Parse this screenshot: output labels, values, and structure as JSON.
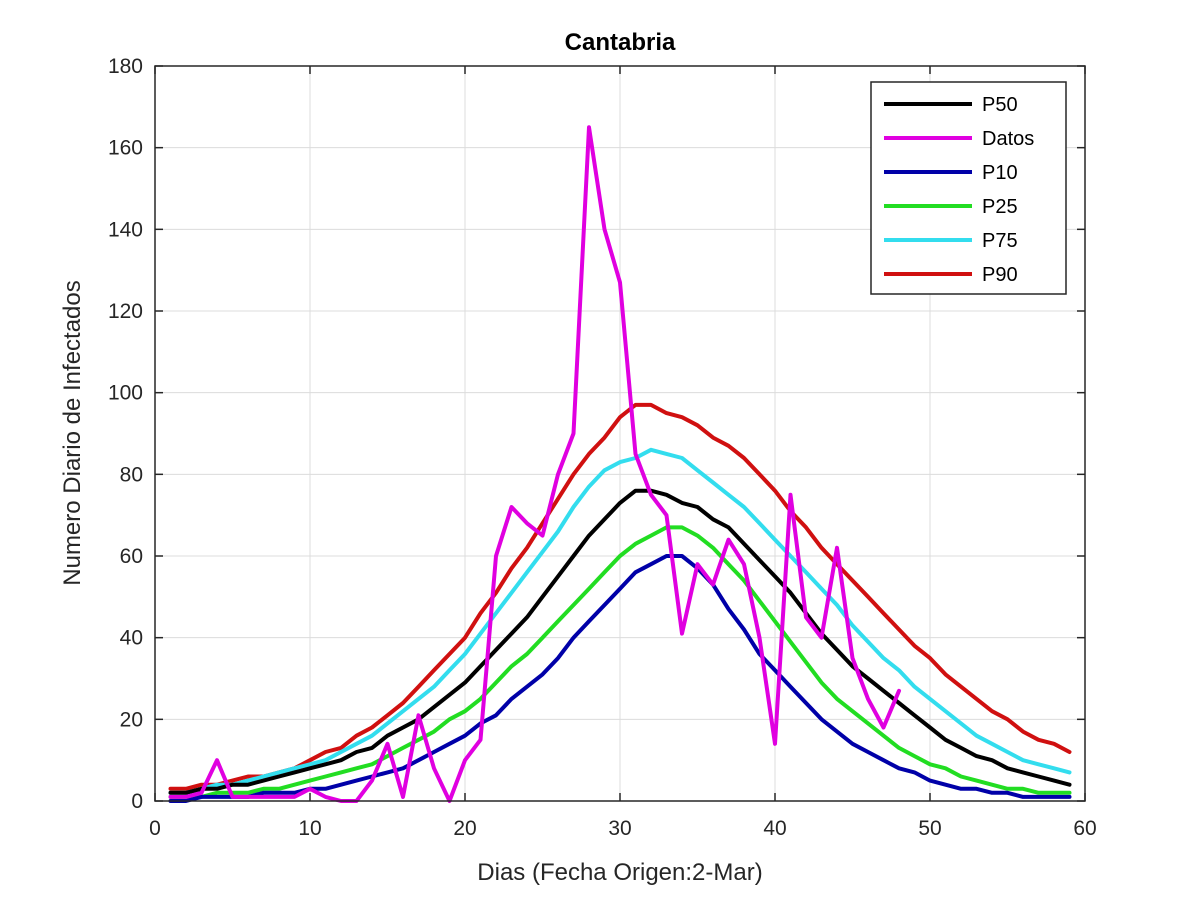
{
  "chart_data": {
    "type": "line",
    "title": "Cantabria",
    "xlabel": "Dias (Fecha Origen:2-Mar)",
    "ylabel": "Numero Diario de Infectados",
    "xlim": [
      0,
      60
    ],
    "ylim": [
      0,
      180
    ],
    "xticks": [
      "0",
      "10",
      "20",
      "30",
      "40",
      "50",
      "60"
    ],
    "yticks": [
      "0",
      "20",
      "40",
      "60",
      "80",
      "100",
      "120",
      "140",
      "160",
      "180"
    ],
    "grid": true,
    "legend_position": "top-right",
    "series": [
      {
        "name": "P50",
        "color": "#000000",
        "x": [
          1,
          2,
          3,
          4,
          5,
          6,
          7,
          8,
          9,
          10,
          11,
          12,
          13,
          14,
          15,
          16,
          17,
          18,
          19,
          20,
          21,
          22,
          23,
          24,
          25,
          26,
          27,
          28,
          29,
          30,
          31,
          32,
          33,
          34,
          35,
          36,
          37,
          38,
          39,
          40,
          41,
          42,
          43,
          44,
          45,
          46,
          47,
          48,
          49,
          50,
          51,
          52,
          53,
          54,
          55,
          56,
          57,
          58,
          59
        ],
        "y": [
          2,
          2,
          3,
          3,
          4,
          4,
          5,
          6,
          7,
          8,
          9,
          10,
          12,
          13,
          16,
          18,
          20,
          23,
          26,
          29,
          33,
          37,
          41,
          45,
          50,
          55,
          60,
          65,
          69,
          73,
          76,
          76,
          75,
          73,
          72,
          69,
          67,
          63,
          59,
          55,
          51,
          46,
          41,
          37,
          33,
          30,
          27,
          24,
          21,
          18,
          15,
          13,
          11,
          10,
          8,
          7,
          6,
          5,
          4
        ]
      },
      {
        "name": "Datos",
        "color": "#e000e0",
        "x": [
          1,
          2,
          3,
          4,
          5,
          6,
          7,
          8,
          9,
          10,
          11,
          12,
          13,
          14,
          15,
          16,
          17,
          18,
          19,
          20,
          21,
          22,
          23,
          24,
          25,
          26,
          27,
          28,
          29,
          30,
          31,
          32,
          33,
          34,
          35,
          36,
          37,
          38,
          39,
          40,
          41,
          42,
          43,
          44,
          45,
          46,
          47,
          48
        ],
        "y": [
          1,
          1,
          2,
          10,
          1,
          1,
          1,
          1,
          1,
          3,
          1,
          0,
          0,
          5,
          14,
          1,
          21,
          8,
          0,
          10,
          15,
          60,
          72,
          68,
          65,
          80,
          90,
          165,
          140,
          127,
          85,
          75,
          70,
          41,
          58,
          53,
          64,
          58,
          40,
          14,
          75,
          45,
          40,
          62,
          35,
          25,
          18,
          27
        ]
      },
      {
        "name": "P10",
        "color": "#0000a8",
        "x": [
          1,
          2,
          3,
          4,
          5,
          6,
          7,
          8,
          9,
          10,
          11,
          12,
          13,
          14,
          15,
          16,
          17,
          18,
          19,
          20,
          21,
          22,
          23,
          24,
          25,
          26,
          27,
          28,
          29,
          30,
          31,
          32,
          33,
          34,
          35,
          36,
          37,
          38,
          39,
          40,
          41,
          42,
          43,
          44,
          45,
          46,
          47,
          48,
          49,
          50,
          51,
          52,
          53,
          54,
          55,
          56,
          57,
          58,
          59
        ],
        "y": [
          0,
          0,
          1,
          1,
          1,
          1,
          2,
          2,
          2,
          3,
          3,
          4,
          5,
          6,
          7,
          8,
          10,
          12,
          14,
          16,
          19,
          21,
          25,
          28,
          31,
          35,
          40,
          44,
          48,
          52,
          56,
          58,
          60,
          60,
          57,
          53,
          47,
          42,
          36,
          32,
          28,
          24,
          20,
          17,
          14,
          12,
          10,
          8,
          7,
          5,
          4,
          3,
          3,
          2,
          2,
          1,
          1,
          1,
          1
        ]
      },
      {
        "name": "P25",
        "color": "#22dd22",
        "x": [
          1,
          2,
          3,
          4,
          5,
          6,
          7,
          8,
          9,
          10,
          11,
          12,
          13,
          14,
          15,
          16,
          17,
          18,
          19,
          20,
          21,
          22,
          23,
          24,
          25,
          26,
          27,
          28,
          29,
          30,
          31,
          32,
          33,
          34,
          35,
          36,
          37,
          38,
          39,
          40,
          41,
          42,
          43,
          44,
          45,
          46,
          47,
          48,
          49,
          50,
          51,
          52,
          53,
          54,
          55,
          56,
          57,
          58,
          59
        ],
        "y": [
          1,
          1,
          1,
          2,
          2,
          2,
          3,
          3,
          4,
          5,
          6,
          7,
          8,
          9,
          11,
          13,
          15,
          17,
          20,
          22,
          25,
          29,
          33,
          36,
          40,
          44,
          48,
          52,
          56,
          60,
          63,
          65,
          67,
          67,
          65,
          62,
          58,
          54,
          49,
          44,
          39,
          34,
          29,
          25,
          22,
          19,
          16,
          13,
          11,
          9,
          8,
          6,
          5,
          4,
          3,
          3,
          2,
          2,
          2
        ]
      },
      {
        "name": "P75",
        "color": "#33ddee",
        "x": [
          1,
          2,
          3,
          4,
          5,
          6,
          7,
          8,
          9,
          10,
          11,
          12,
          13,
          14,
          15,
          16,
          17,
          18,
          19,
          20,
          21,
          22,
          23,
          24,
          25,
          26,
          27,
          28,
          29,
          30,
          31,
          32,
          33,
          34,
          35,
          36,
          37,
          38,
          39,
          40,
          41,
          42,
          43,
          44,
          45,
          46,
          47,
          48,
          49,
          50,
          51,
          52,
          53,
          54,
          55,
          56,
          57,
          58,
          59
        ],
        "y": [
          2,
          2,
          3,
          4,
          4,
          5,
          6,
          7,
          8,
          9,
          10,
          12,
          14,
          16,
          19,
          22,
          25,
          28,
          32,
          36,
          41,
          46,
          51,
          56,
          61,
          66,
          72,
          77,
          81,
          83,
          84,
          86,
          85,
          84,
          81,
          78,
          75,
          72,
          68,
          64,
          60,
          56,
          52,
          48,
          43,
          39,
          35,
          32,
          28,
          25,
          22,
          19,
          16,
          14,
          12,
          10,
          9,
          8,
          7
        ]
      },
      {
        "name": "P90",
        "color": "#d01010",
        "x": [
          1,
          2,
          3,
          4,
          5,
          6,
          7,
          8,
          9,
          10,
          11,
          12,
          13,
          14,
          15,
          16,
          17,
          18,
          19,
          20,
          21,
          22,
          23,
          24,
          25,
          26,
          27,
          28,
          29,
          30,
          31,
          32,
          33,
          34,
          35,
          36,
          37,
          38,
          39,
          40,
          41,
          42,
          43,
          44,
          45,
          46,
          47,
          48,
          49,
          50,
          51,
          52,
          53,
          54,
          55,
          56,
          57,
          58,
          59
        ],
        "y": [
          3,
          3,
          4,
          4,
          5,
          6,
          6,
          7,
          8,
          10,
          12,
          13,
          16,
          18,
          21,
          24,
          28,
          32,
          36,
          40,
          46,
          51,
          57,
          62,
          68,
          74,
          80,
          85,
          89,
          94,
          97,
          97,
          95,
          94,
          92,
          89,
          87,
          84,
          80,
          76,
          71,
          67,
          62,
          58,
          54,
          50,
          46,
          42,
          38,
          35,
          31,
          28,
          25,
          22,
          20,
          17,
          15,
          14,
          12
        ]
      }
    ]
  }
}
